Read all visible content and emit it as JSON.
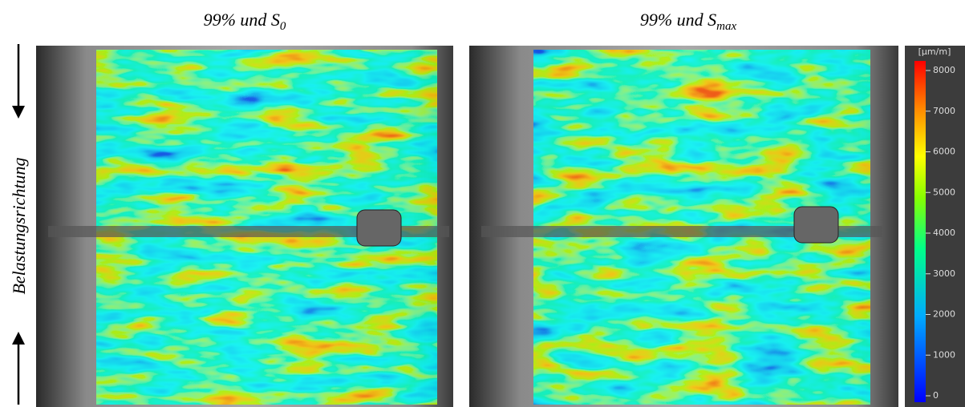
{
  "panels": [
    {
      "title": {
        "text": "99% und S",
        "sub": "0"
      }
    },
    {
      "title": {
        "text": "99% und S",
        "sub": "max"
      }
    }
  ],
  "side_label": "Belastungsrichtung",
  "colorbar": {
    "label": "[µm/m]",
    "lim": [
      0,
      8000
    ],
    "ticks": [
      0,
      1000,
      2000,
      3000,
      4000,
      5000,
      6000,
      7000,
      8000
    ]
  }
}
